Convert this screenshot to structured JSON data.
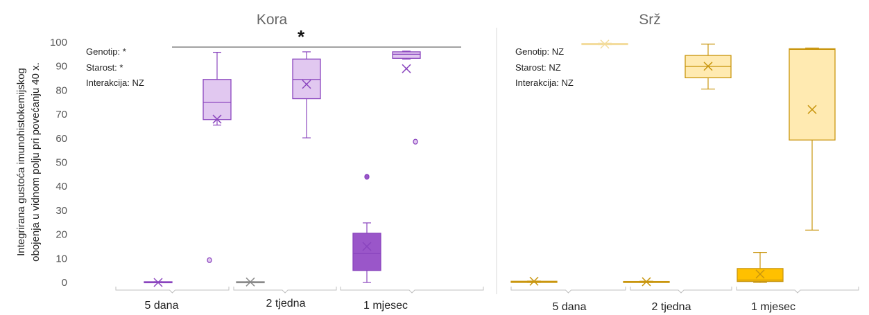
{
  "chart_data": {
    "type": "box",
    "ylabel_lines": [
      "Integrirana gustoća imunohistokemijskog",
      "obojenja u vidnom polju pri povećanju 40 x."
    ],
    "ylim": [
      0,
      100
    ],
    "yticks": [
      0,
      10,
      20,
      30,
      40,
      50,
      60,
      70,
      80,
      90,
      100
    ],
    "grid": false,
    "groups": [
      "5 dana",
      "2 tjedna",
      "1 mjesec"
    ],
    "panels": [
      {
        "title": "Kora",
        "stats": [
          "Genotip: *",
          "Starost: *",
          "Interakcija: NZ"
        ],
        "significance": "*",
        "boxes": [
          {
            "group": 0,
            "variant": "dark",
            "min": 0,
            "q1": 0,
            "median": 0,
            "q3": 0.3,
            "max": 0.3,
            "mean": 0,
            "outliers": []
          },
          {
            "group": 0,
            "variant": "light",
            "min": 65.5,
            "q1": 67.8,
            "median": 75,
            "q3": 84.5,
            "max": 95.8,
            "mean": 68,
            "outliers": [
              9.3
            ]
          },
          {
            "group": 1,
            "variant": "dark",
            "min": 0,
            "q1": 0,
            "median": 0,
            "q3": 0.3,
            "max": 0.3,
            "mean": 0.2,
            "outliers": []
          },
          {
            "group": 1,
            "variant": "light",
            "min": 60.2,
            "q1": 76.5,
            "median": 84.5,
            "q3": 93,
            "max": 96,
            "mean": 82.5,
            "outliers": []
          },
          {
            "group": 2,
            "variant": "dark",
            "min": 0,
            "q1": 5,
            "median": 12,
            "q3": 20.5,
            "max": 24.8,
            "mean": 15,
            "outliers": [
              44
            ]
          },
          {
            "group": 2,
            "variant": "light",
            "min": 93,
            "q1": 93.3,
            "median": 95,
            "q3": 96,
            "max": 96.3,
            "mean": 89,
            "outliers": [
              58.6
            ]
          }
        ]
      },
      {
        "title": "Srž",
        "stats": [
          "Genotip: NZ",
          "Starost: NZ",
          "Interakcija: NZ"
        ],
        "significance": "",
        "boxes": [
          {
            "group": 0,
            "variant": "dark",
            "min": 0,
            "q1": 0,
            "median": 0.2,
            "q3": 0.5,
            "max": 0.6,
            "mean": 0.5,
            "outliers": []
          },
          {
            "group": 0,
            "variant": "light",
            "min": 99,
            "q1": 99,
            "median": 99.2,
            "q3": 99.5,
            "max": 99.6,
            "mean": 99.2,
            "outliers": []
          },
          {
            "group": 1,
            "variant": "dark",
            "min": 0,
            "q1": 0,
            "median": 0.2,
            "q3": 0.4,
            "max": 0.5,
            "mean": 0.3,
            "outliers": []
          },
          {
            "group": 1,
            "variant": "light",
            "min": 80.5,
            "q1": 85.2,
            "median": 90,
            "q3": 94.5,
            "max": 99.2,
            "mean": 90,
            "outliers": []
          },
          {
            "group": 2,
            "variant": "dark",
            "min": 0,
            "q1": 0.4,
            "median": 1,
            "q3": 5.8,
            "max": 12.5,
            "mean": 3.5,
            "outliers": []
          },
          {
            "group": 2,
            "variant": "light",
            "min": 21.8,
            "q1": 59.3,
            "median": 97,
            "q3": 97.3,
            "max": 97.6,
            "mean": 72,
            "outliers": []
          }
        ]
      }
    ],
    "colors": {
      "kora_dark_fill": "#9a56c9",
      "kora_light_fill": "#e1c8f0",
      "kora_stroke": "#8a45be",
      "srz_dark_fill": "#ffc000",
      "srz_light_fill": "#ffeab1",
      "srz_stroke": "#c9960f",
      "grey_stroke": "#8a8a8a",
      "axis": "#bfbfbf",
      "divider": "#d9d9d9"
    }
  }
}
